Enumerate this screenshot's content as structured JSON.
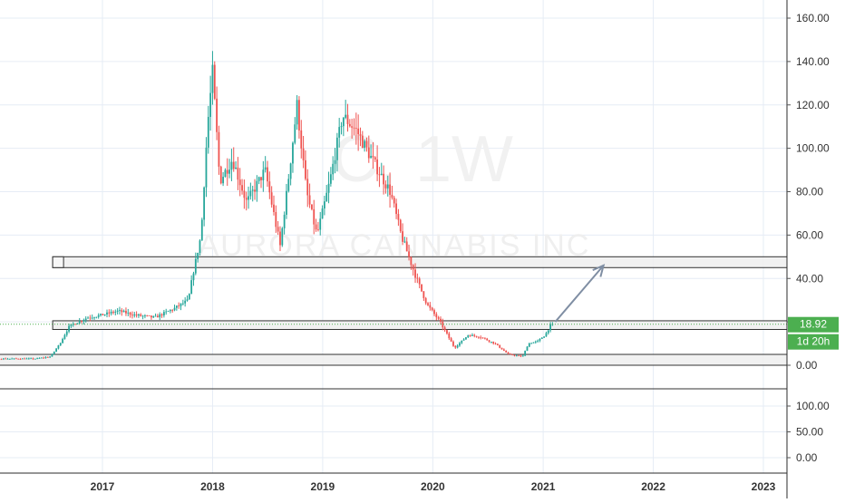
{
  "watermark": {
    "symbol_text": "C, 1W",
    "company_text": "AURORA CANNABIS INC"
  },
  "price_axis": {
    "ticks": [
      "160.00",
      "140.00",
      "120.00",
      "100.00",
      "80.00",
      "60.00",
      "40.00",
      "20.00",
      "0.00"
    ],
    "last_price_label": "18.92",
    "countdown_label": "1d 20h",
    "accent_color": "#4caf50"
  },
  "volume_axis": {
    "ticks": [
      "100.00",
      "50.00",
      "0.00"
    ]
  },
  "time_axis": {
    "ticks": [
      "2017",
      "2018",
      "2019",
      "2020",
      "2021",
      "2022",
      "2023"
    ]
  },
  "colors": {
    "up": "#26a69a",
    "down": "#ef5350",
    "zone_fill": "#eeeeee",
    "zone_stroke": "#333333",
    "arrow": "#7f8ea3",
    "grid": "#e6ecf5",
    "last_price_line": "#4caf50"
  },
  "chart_data": {
    "type": "candlestick",
    "x_label": "",
    "y_label": "",
    "ylim": [
      -10,
      165
    ],
    "series": [
      {
        "anchors": [
          [
            "2015-06-01",
            3
          ],
          [
            "2016-06-01",
            3
          ],
          [
            "2016-07-20",
            4
          ],
          [
            "2016-08-20",
            10
          ],
          [
            "2016-09-20",
            18
          ],
          [
            "2016-10-20",
            20
          ],
          [
            "2016-11-20",
            22
          ],
          [
            "2017-01-01",
            23
          ],
          [
            "2017-03-01",
            25
          ],
          [
            "2017-05-01",
            23
          ],
          [
            "2017-07-01",
            22
          ],
          [
            "2017-09-01",
            26
          ],
          [
            "2017-10-20",
            30
          ],
          [
            "2017-11-01",
            40
          ],
          [
            "2017-12-01",
            60
          ],
          [
            "2017-12-22",
            110
          ],
          [
            "2018-01-08",
            135
          ],
          [
            "2018-02-01",
            85
          ],
          [
            "2018-03-15",
            95
          ],
          [
            "2018-05-01",
            75
          ],
          [
            "2018-07-01",
            90
          ],
          [
            "2018-08-20",
            55
          ],
          [
            "2018-09-20",
            90
          ],
          [
            "2018-10-15",
            120
          ],
          [
            "2018-11-15",
            80
          ],
          [
            "2018-12-20",
            60
          ],
          [
            "2019-02-01",
            85
          ],
          [
            "2019-03-15",
            115
          ],
          [
            "2019-05-01",
            108
          ],
          [
            "2019-06-20",
            95
          ],
          [
            "2019-08-20",
            80
          ],
          [
            "2019-09-25",
            60
          ],
          [
            "2019-11-15",
            40
          ],
          [
            "2019-12-20",
            28
          ],
          [
            "2020-02-01",
            20
          ],
          [
            "2020-03-20",
            8
          ],
          [
            "2020-05-05",
            14
          ],
          [
            "2020-06-15",
            13
          ],
          [
            "2020-08-01",
            10
          ],
          [
            "2020-09-15",
            5
          ],
          [
            "2020-11-01",
            4
          ],
          [
            "2020-11-20",
            10
          ],
          [
            "2020-12-20",
            11
          ],
          [
            "2021-01-15",
            14
          ],
          [
            "2021-02-03",
            18.92
          ]
        ]
      }
    ],
    "last_price": 18.92,
    "support_resistance_zones": [
      {
        "start": "2015-06-01",
        "low": 0,
        "high": 5
      },
      {
        "start": "2016-07-20",
        "low": 16.5,
        "high": 20.5
      },
      {
        "start": "2016-07-20",
        "low": 45,
        "high": 50
      }
    ],
    "arrow": {
      "from": [
        "2021-02-10",
        20
      ],
      "to": [
        "2021-07-20",
        46
      ]
    },
    "volume_ylim": [
      -10,
      135
    ]
  }
}
